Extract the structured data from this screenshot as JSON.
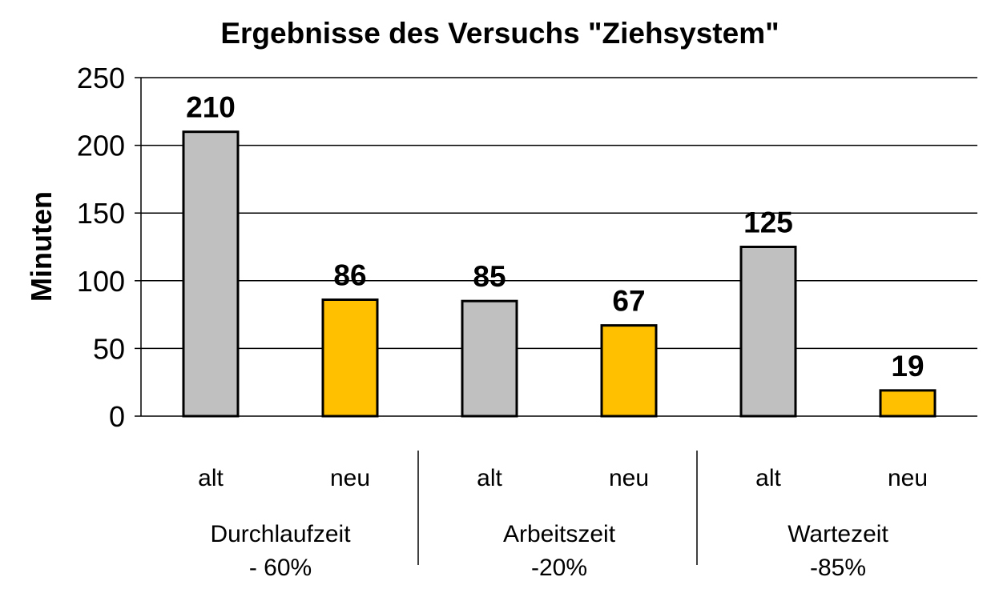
{
  "chart_data": {
    "type": "bar",
    "title": "Ergebnisse des Versuchs \"Ziehsystem\"",
    "ylabel": "Minuten",
    "xlabel": "",
    "ylim": [
      0,
      250
    ],
    "yticks": [
      0,
      50,
      100,
      150,
      200,
      250
    ],
    "grid": true,
    "legend": "none",
    "groups": [
      {
        "name": "Durchlaufzeit",
        "change": "- 60%"
      },
      {
        "name": "Arbeitszeit",
        "change": "-20%"
      },
      {
        "name": "Wartezeit",
        "change": "-85%"
      }
    ],
    "categories": [
      "alt",
      "neu",
      "alt",
      "neu",
      "alt",
      "neu"
    ],
    "values": [
      210,
      86,
      85,
      67,
      125,
      19
    ],
    "colors": {
      "alt": "#c0c0c0",
      "neu": "#ffc000",
      "grid": "#000000",
      "bar_border": "#000000"
    }
  }
}
